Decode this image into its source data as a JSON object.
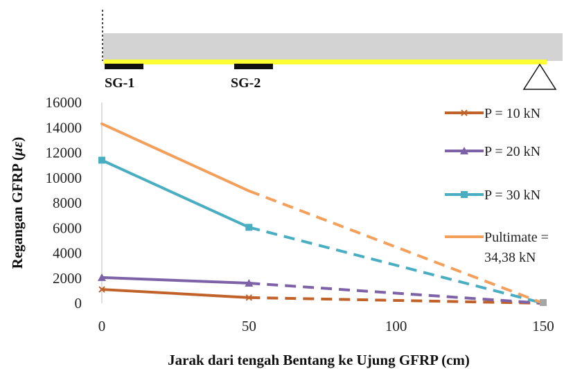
{
  "beam": {
    "labels": [
      "SG-1",
      "SG-2"
    ],
    "colors": {
      "beam": "#d3d3d3",
      "gfrp": "#ffff33",
      "gauge": "#111111"
    }
  },
  "chart_data": {
    "type": "line",
    "xlabel": "Jarak dari tengah Bentang ke Ujung GFRP (cm)",
    "ylabel": "Regangan GFRP (με)",
    "ylabel_parts": [
      "Regangan GFRP (",
      "με",
      ")"
    ],
    "xlim": [
      0,
      150
    ],
    "ylim": [
      0,
      16000
    ],
    "x_ticks": [
      0,
      50,
      100,
      150
    ],
    "y_ticks": [
      0,
      2000,
      4000,
      6000,
      8000,
      10000,
      12000,
      14000,
      16000
    ],
    "grid": false,
    "legend_position": "right",
    "line_style": "solid between measured points (0–50 cm), dashed extrapolation to support (150 cm)",
    "series": [
      {
        "name": "P = 10 kN",
        "color": "#c0622a",
        "marker": "x",
        "x": [
          0,
          50,
          150
        ],
        "y": [
          1100,
          450,
          0
        ]
      },
      {
        "name": "P = 20 kN",
        "color": "#7d62a8",
        "marker": "triangle",
        "x": [
          0,
          50,
          150
        ],
        "y": [
          2050,
          1600,
          0
        ]
      },
      {
        "name": "P = 30 kN",
        "color": "#4aaec2",
        "marker": "square",
        "x": [
          0,
          50,
          150
        ],
        "y": [
          11400,
          6050,
          0
        ]
      },
      {
        "name": "Pultimate = 34,38 kN",
        "name_lines": [
          "Pultimate =",
          "34,38 kN"
        ],
        "color": "#f3a05c",
        "marker": "none",
        "x": [
          0,
          50,
          150
        ],
        "y": [
          14300,
          8950,
          0
        ]
      }
    ]
  }
}
